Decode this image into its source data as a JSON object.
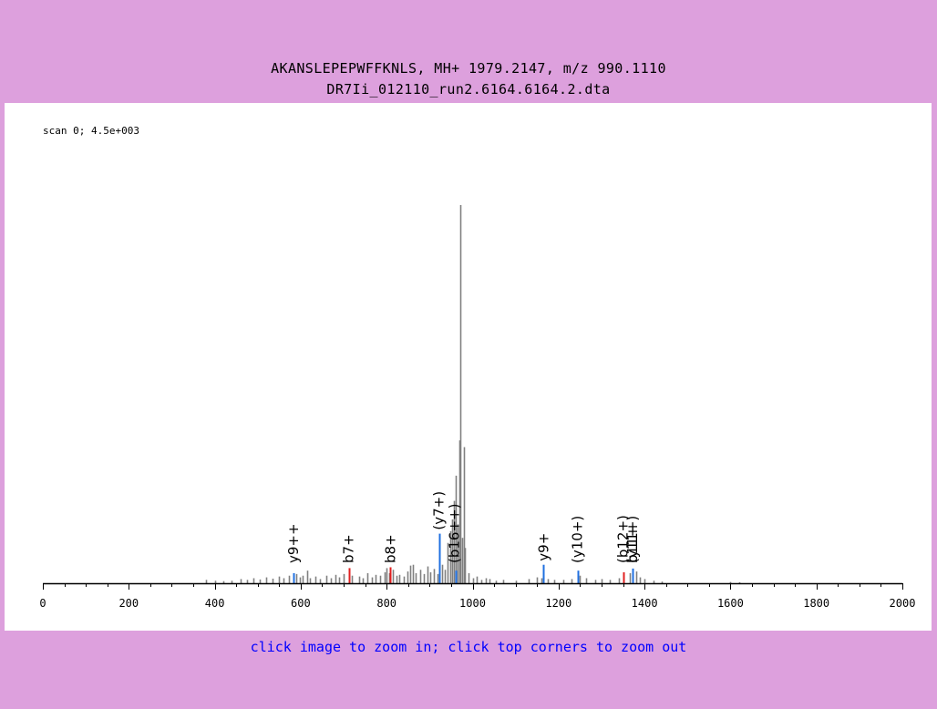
{
  "header": {
    "title_line1": "AKANSLEPEPWFFKNLS, MH+ 1979.2147, m/z 990.1110",
    "title_line2": "DR7Ii_012110_run2.6164.6164.2.dta"
  },
  "footer": {
    "zoom_hint": "click image to zoom in; click top corners to zoom out"
  },
  "colors": {
    "background": "#dda0dd",
    "plot_background": "#ffffff",
    "peak_unassigned": "#808080",
    "b_ion": "#e02020",
    "y_ion": "#2070e0",
    "hint_text": "#0000ff"
  },
  "chart_data": {
    "type": "bar",
    "scan_label": "scan 0; 4.5e+003",
    "xlim": [
      0,
      2000
    ],
    "ylim": [
      0,
      4500
    ],
    "x_ticks": [
      0,
      200,
      400,
      600,
      800,
      1000,
      1200,
      1400,
      1600,
      1800,
      2000
    ],
    "xlabel": "",
    "ylabel": "",
    "grid": false,
    "series": [
      {
        "kind": "unassigned",
        "color": "#808080",
        "points": [
          [
            380,
            40
          ],
          [
            400,
            30
          ],
          [
            420,
            25
          ],
          [
            440,
            30
          ],
          [
            460,
            50
          ],
          [
            475,
            40
          ],
          [
            490,
            60
          ],
          [
            505,
            45
          ],
          [
            520,
            70
          ],
          [
            535,
            55
          ],
          [
            550,
            80
          ],
          [
            560,
            60
          ],
          [
            572,
            90
          ],
          [
            590,
            110
          ],
          [
            598,
            70
          ],
          [
            605,
            90
          ],
          [
            615,
            150
          ],
          [
            622,
            60
          ],
          [
            635,
            80
          ],
          [
            645,
            50
          ],
          [
            660,
            90
          ],
          [
            670,
            60
          ],
          [
            680,
            100
          ],
          [
            690,
            70
          ],
          [
            700,
            110
          ],
          [
            720,
            90
          ],
          [
            735,
            80
          ],
          [
            745,
            60
          ],
          [
            755,
            120
          ],
          [
            765,
            70
          ],
          [
            775,
            100
          ],
          [
            785,
            90
          ],
          [
            795,
            130
          ],
          [
            800,
            180
          ],
          [
            805,
            120
          ],
          [
            815,
            160
          ],
          [
            822,
            90
          ],
          [
            830,
            100
          ],
          [
            840,
            80
          ],
          [
            848,
            140
          ],
          [
            855,
            210
          ],
          [
            862,
            220
          ],
          [
            868,
            120
          ],
          [
            878,
            160
          ],
          [
            886,
            110
          ],
          [
            895,
            200
          ],
          [
            902,
            130
          ],
          [
            910,
            170
          ],
          [
            918,
            110
          ],
          [
            928,
            220
          ],
          [
            935,
            160
          ],
          [
            942,
            480
          ],
          [
            948,
            620
          ],
          [
            953,
            760
          ],
          [
            957,
            980
          ],
          [
            961,
            1280
          ],
          [
            965,
            700
          ],
          [
            969,
            1700
          ],
          [
            972,
            4500
          ],
          [
            976,
            540
          ],
          [
            979,
            1620
          ],
          [
            983,
            420
          ],
          [
            990,
            120
          ],
          [
            1000,
            60
          ],
          [
            1010,
            80
          ],
          [
            1020,
            40
          ],
          [
            1030,
            60
          ],
          [
            1040,
            50
          ],
          [
            1055,
            30
          ],
          [
            1070,
            40
          ],
          [
            1100,
            30
          ],
          [
            1130,
            50
          ],
          [
            1150,
            70
          ],
          [
            1160,
            60
          ],
          [
            1175,
            50
          ],
          [
            1190,
            40
          ],
          [
            1210,
            40
          ],
          [
            1230,
            50
          ],
          [
            1250,
            90
          ],
          [
            1265,
            60
          ],
          [
            1285,
            40
          ],
          [
            1300,
            50
          ],
          [
            1320,
            40
          ],
          [
            1340,
            60
          ],
          [
            1365,
            120
          ],
          [
            1380,
            140
          ],
          [
            1390,
            70
          ],
          [
            1400,
            50
          ],
          [
            1420,
            30
          ],
          [
            1440,
            20
          ],
          [
            1600,
            15
          ],
          [
            1620,
            12
          ]
        ]
      },
      {
        "kind": "b",
        "color": "#e02020",
        "points": [
          [
            712,
            180
          ],
          [
            809,
            190
          ],
          [
            1350,
            130
          ]
        ]
      },
      {
        "kind": "y",
        "color": "#2070e0",
        "points": [
          [
            583,
            120
          ],
          [
            922,
            590
          ],
          [
            960,
            150
          ],
          [
            1165,
            220
          ],
          [
            1244,
            150
          ],
          [
            1372,
            175
          ]
        ]
      }
    ],
    "annotations": [
      {
        "label": "y9++",
        "x": 583,
        "color": "#2070e0"
      },
      {
        "label": "b7+",
        "x": 712,
        "color": "#e02020"
      },
      {
        "label": "b8+",
        "x": 809,
        "color": "#e02020"
      },
      {
        "label": "(y7+)",
        "x": 922,
        "color": "#2070e0"
      },
      {
        "label": "(b16++)",
        "x": 958,
        "color": "#2070e0"
      },
      {
        "label": "y9+",
        "x": 1165,
        "color": "#2070e0"
      },
      {
        "label": "(y10+)",
        "x": 1244,
        "color": "#2070e0"
      },
      {
        "label": "(b12+)",
        "x": 1350,
        "color": "#e02020"
      },
      {
        "label": "(y11+)",
        "x": 1372,
        "color": "#2070e0"
      },
      {
        "label": "b11+",
        "x": 1372,
        "color": "#e02020"
      }
    ]
  }
}
